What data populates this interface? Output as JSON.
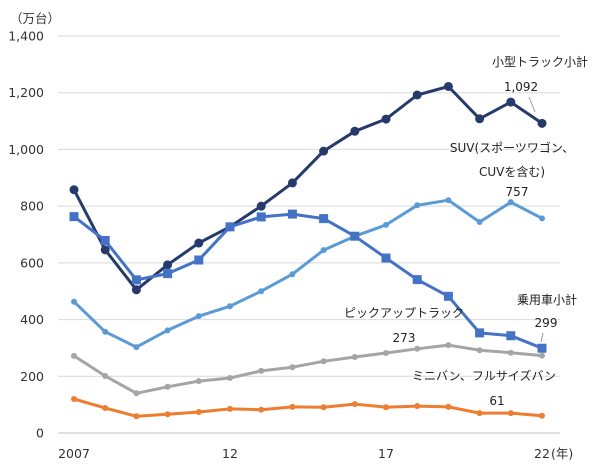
{
  "chart_data": {
    "type": "line",
    "title": "",
    "ylabel": "（万台）",
    "xlabel_suffix": "(年)",
    "ylim": [
      0,
      1400
    ],
    "yticks": [
      "0",
      "200",
      "400",
      "600",
      "800",
      "1,000",
      "1,200",
      "1,400"
    ],
    "x": [
      2007,
      2008,
      2009,
      2010,
      2011,
      2012,
      2013,
      2014,
      2015,
      2016,
      2017,
      2018,
      2019,
      2020,
      2021,
      2022
    ],
    "xtick_labels": [
      {
        "x": 2007,
        "label": "2007"
      },
      {
        "x": 2012,
        "label": "12"
      },
      {
        "x": 2017,
        "label": "17"
      },
      {
        "x": 2022,
        "label": "22"
      }
    ],
    "grid": true,
    "series": [
      {
        "name": "小型トラック小計",
        "color": "#263a6b",
        "marker": "circle",
        "values": [
          858,
          646,
          505,
          593,
          670,
          727,
          800,
          882,
          994,
          1064,
          1107,
          1192,
          1222,
          1108,
          1167,
          1092
        ],
        "end_label": "1,092",
        "label_lines": [
          "小型トラック小計"
        ]
      },
      {
        "name": "SUV(スポーツワゴン、CUVを含む)",
        "color": "#5b9bd5",
        "marker": "dot",
        "values": [
          463,
          357,
          303,
          362,
          412,
          447,
          500,
          560,
          645,
          694,
          734,
          803,
          821,
          744,
          814,
          757
        ],
        "end_label": "757",
        "label_lines": [
          "SUV(スポーツワゴン、",
          "CUVを含む)"
        ]
      },
      {
        "name": "乗用車小計",
        "color": "#4472c4",
        "marker": "square",
        "values": [
          763,
          679,
          540,
          562,
          610,
          727,
          762,
          772,
          756,
          694,
          617,
          541,
          482,
          353,
          343,
          299
        ],
        "end_label": "299",
        "label_lines": [
          "乗用車小計"
        ]
      },
      {
        "name": "ピックアップトラック",
        "color": "#a5a5a5",
        "marker": "dot",
        "values": [
          272,
          201,
          140,
          163,
          183,
          194,
          219,
          232,
          253,
          268,
          282,
          297,
          310,
          292,
          283,
          273
        ],
        "end_label": "273",
        "label_lines": [
          "ピックアップトラック"
        ]
      },
      {
        "name": "ミニバン、フルサイズバン",
        "color": "#ed7d31",
        "marker": "dot",
        "values": [
          120,
          88,
          59,
          66,
          74,
          85,
          82,
          92,
          91,
          102,
          91,
          95,
          92,
          70,
          70,
          61
        ],
        "end_label": "61",
        "label_lines": [
          "ミニバン、フルサイズバン"
        ]
      }
    ]
  }
}
